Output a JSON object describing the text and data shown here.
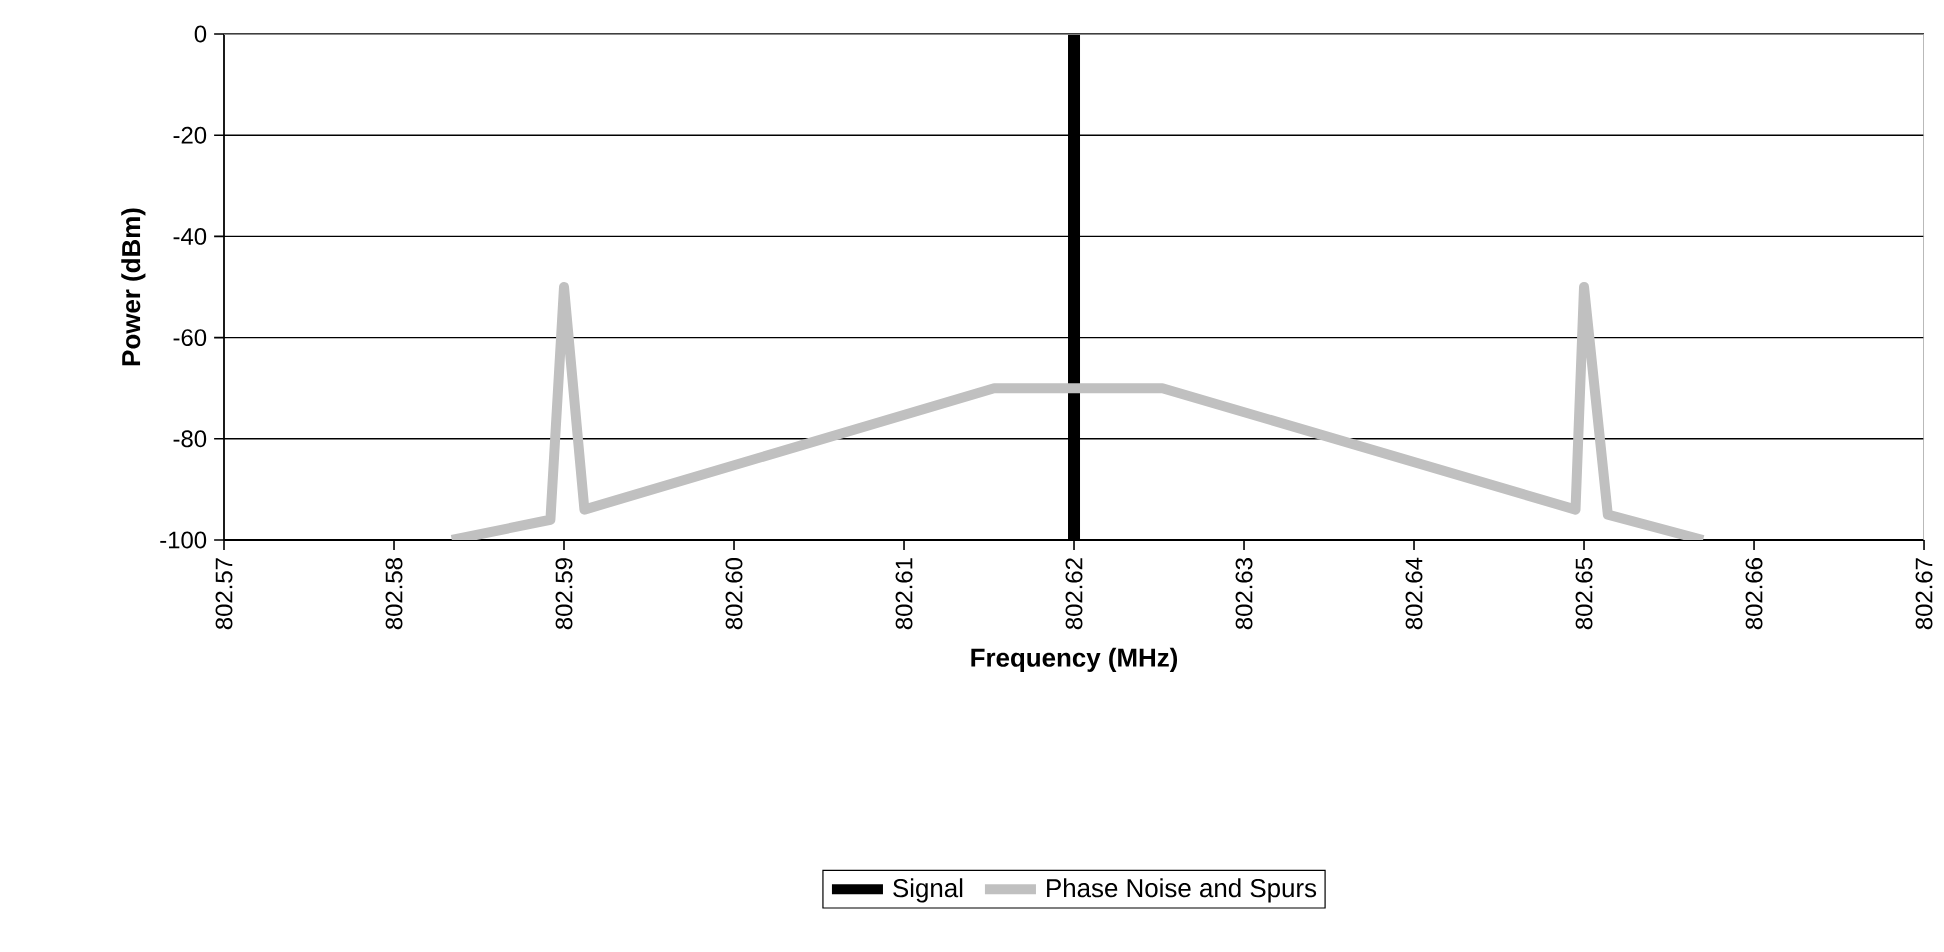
{
  "chart_data": {
    "type": "line",
    "xlabel": "Frequency (MHz)",
    "ylabel": "Power (dBm)",
    "series": [
      {
        "name": "Signal",
        "color": "#000000",
        "x": [
          802.62,
          802.62
        ],
        "values": [
          -100,
          0
        ]
      },
      {
        "name": "Phase Noise and Spurs",
        "color": "#c0c0c0",
        "x": [
          802.5834,
          802.5892,
          802.59,
          802.5912,
          802.6153,
          802.6252,
          802.6495,
          802.65,
          802.6514,
          802.657
        ],
        "values": [
          -100,
          -96,
          -50,
          -94,
          -70,
          -70,
          -94,
          -50,
          -95,
          -100
        ]
      }
    ],
    "xlim": [
      802.57,
      802.67
    ],
    "ylim": [
      -100,
      0
    ],
    "xticks": [
      802.57,
      802.58,
      802.59,
      {
        "value": 802.6,
        "label": "802.60"
      },
      802.61,
      802.62,
      802.63,
      802.64,
      802.65,
      802.66,
      802.67
    ],
    "yticks": [
      -100,
      -80,
      -60,
      -40,
      -20,
      0
    ],
    "grid": "y",
    "legend": "bottom",
    "marker": "none",
    "line_style": "solid"
  }
}
